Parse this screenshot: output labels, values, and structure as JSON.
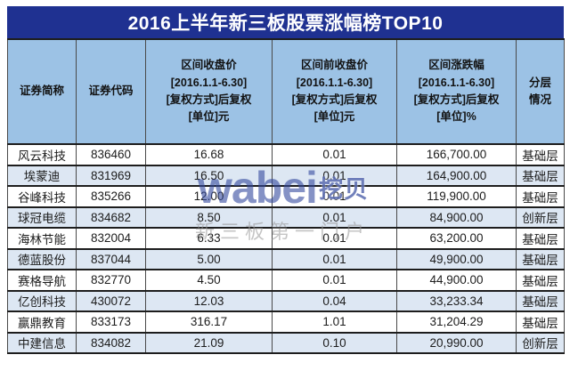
{
  "title": "2016上半年新三板股票涨幅榜TOP10",
  "table": {
    "headers": {
      "name": "证券简称",
      "code": "证券代码",
      "close": "区间收盘价\n[2016.1.1-6.30]\n[复权方式]后复权\n[单位]元",
      "prev_close": "区间前收盘价\n[2016.1.1-6.30]\n[复权方式]后复权\n[单位]元",
      "change_pct": "区间涨跌幅\n[2016.1.1-6.30]\n[复权方式]后复权\n[单位]%",
      "tier": "分层\n情况"
    },
    "rows": [
      {
        "name": "风云科技",
        "code": "836460",
        "close": "16.68",
        "prev_close": "0.01",
        "change_pct": "166,700.00",
        "tier": "基础层"
      },
      {
        "name": "埃蒙迪",
        "code": "831969",
        "close": "16.50",
        "prev_close": "0.01",
        "change_pct": "164,900.00",
        "tier": "基础层"
      },
      {
        "name": "谷峰科技",
        "code": "835266",
        "close": "12.00",
        "prev_close": "0.01",
        "change_pct": "119,900.00",
        "tier": "基础层"
      },
      {
        "name": "球冠电缆",
        "code": "834682",
        "close": "8.50",
        "prev_close": "0.01",
        "change_pct": "84,900.00",
        "tier": "创新层"
      },
      {
        "name": "海林节能",
        "code": "832004",
        "close": "6.33",
        "prev_close": "0.01",
        "change_pct": "63,200.00",
        "tier": "基础层"
      },
      {
        "name": "德蓝股份",
        "code": "837044",
        "close": "5.00",
        "prev_close": "0.01",
        "change_pct": "49,900.00",
        "tier": "基础层"
      },
      {
        "name": "赛格导航",
        "code": "832770",
        "close": "4.50",
        "prev_close": "0.01",
        "change_pct": "44,900.00",
        "tier": "基础层"
      },
      {
        "name": "亿创科技",
        "code": "430072",
        "close": "12.03",
        "prev_close": "0.04",
        "change_pct": "33,233.34",
        "tier": "基础层"
      },
      {
        "name": "赢鼎教育",
        "code": "833173",
        "close": "316.17",
        "prev_close": "1.01",
        "change_pct": "31,204.29",
        "tier": "基础层"
      },
      {
        "name": "中建信息",
        "code": "834082",
        "close": "21.09",
        "prev_close": "0.10",
        "change_pct": "20,990.00",
        "tier": "创新层"
      }
    ]
  },
  "watermark": {
    "brand_latin": "wabei",
    "brand_cn": "挖贝",
    "tagline": "新三板第一门户"
  },
  "colors": {
    "title_bg": "#1f3191",
    "title_text": "#ffffff",
    "header_bg": "#9cc2e5",
    "row_bg": "#ffffff",
    "row_alt_bg": "#dde7f3",
    "border_dark": "#1d1d1d",
    "border_vertical": "#4a4a4a",
    "cell_text": "#1c1c1c",
    "watermark_blue": "#344a9e",
    "watermark_gray": "#969696"
  },
  "chart_data": {
    "type": "table",
    "title": "2016上半年新三板股票涨幅榜TOP10",
    "columns": [
      "证券简称",
      "证券代码",
      "区间收盘价[2016.1.1-6.30][复权方式]后复权[单位]元",
      "区间前收盘价[2016.1.1-6.30][复权方式]后复权[单位]元",
      "区间涨跌幅[2016.1.1-6.30][复权方式]后复权[单位]%",
      "分层情况"
    ],
    "rows": [
      [
        "风云科技",
        "836460",
        16.68,
        0.01,
        166700.0,
        "基础层"
      ],
      [
        "埃蒙迪",
        "831969",
        16.5,
        0.01,
        164900.0,
        "基础层"
      ],
      [
        "谷峰科技",
        "835266",
        12.0,
        0.01,
        119900.0,
        "基础层"
      ],
      [
        "球冠电缆",
        "834682",
        8.5,
        0.01,
        84900.0,
        "创新层"
      ],
      [
        "海林节能",
        "832004",
        6.33,
        0.01,
        63200.0,
        "基础层"
      ],
      [
        "德蓝股份",
        "837044",
        5.0,
        0.01,
        49900.0,
        "基础层"
      ],
      [
        "赛格导航",
        "832770",
        4.5,
        0.01,
        44900.0,
        "基础层"
      ],
      [
        "亿创科技",
        "430072",
        12.03,
        0.04,
        33233.34,
        "基础层"
      ],
      [
        "赢鼎教育",
        "833173",
        316.17,
        1.01,
        31204.29,
        "基础层"
      ],
      [
        "中建信息",
        "834082",
        21.09,
        0.1,
        20990.0,
        "创新层"
      ]
    ]
  }
}
